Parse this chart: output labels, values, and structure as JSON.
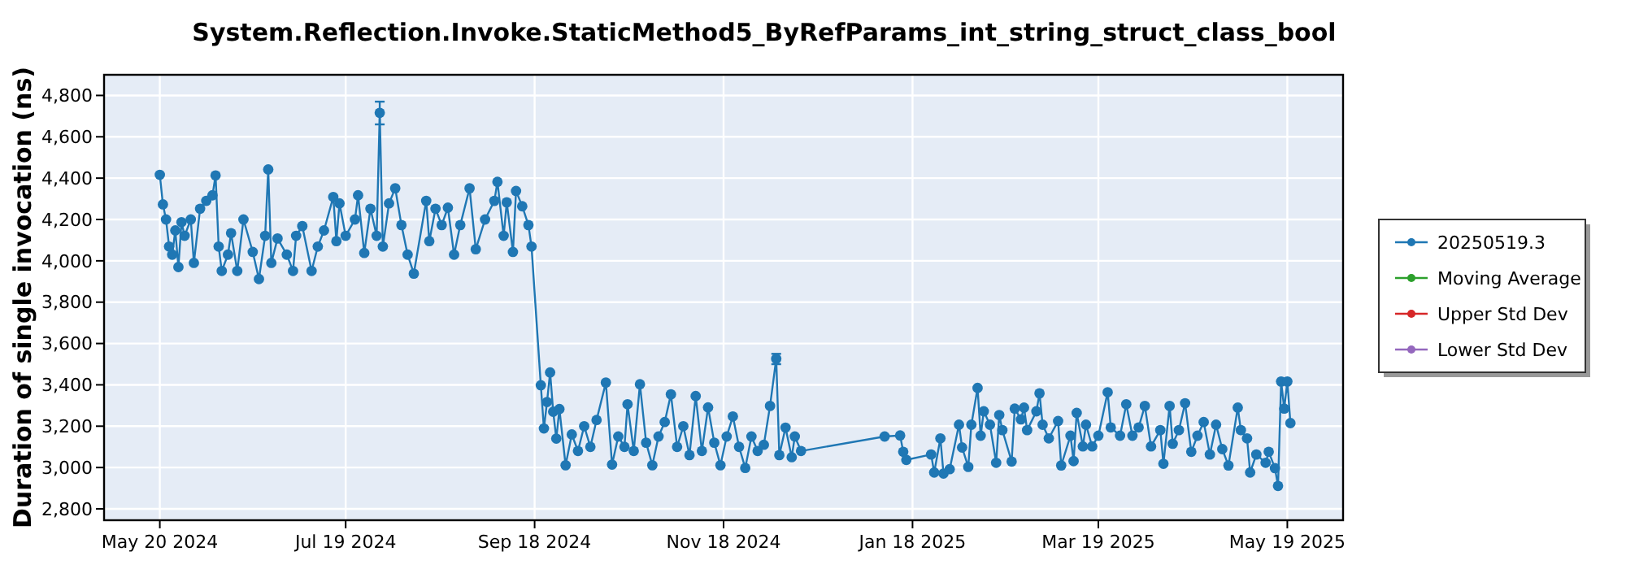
{
  "chart_data": {
    "type": "line",
    "title": "System.Reflection.Invoke.StaticMethod5_ByRefParams_int_string_struct_class_bool",
    "ylabel": "Duration of single invocation (ns)",
    "xlim": [
      "2024-05-02",
      "2025-06-06"
    ],
    "ylim": [
      2745,
      4900
    ],
    "xticks": [
      {
        "value": "2024-05-20",
        "label": "May 20 2024"
      },
      {
        "value": "2024-07-19",
        "label": "Jul 19 2024"
      },
      {
        "value": "2024-09-18",
        "label": "Sep 18 2024"
      },
      {
        "value": "2024-11-18",
        "label": "Nov 18 2024"
      },
      {
        "value": "2025-01-18",
        "label": "Jan 18 2025"
      },
      {
        "value": "2025-03-19",
        "label": "Mar 19 2025"
      },
      {
        "value": "2025-05-19",
        "label": "May 19 2025"
      }
    ],
    "yticks": [
      {
        "value": 2800,
        "label": "2,800"
      },
      {
        "value": 3000,
        "label": "3,000"
      },
      {
        "value": 3200,
        "label": "3,200"
      },
      {
        "value": 3400,
        "label": "3,400"
      },
      {
        "value": 3600,
        "label": "3,600"
      },
      {
        "value": 3800,
        "label": "3,800"
      },
      {
        "value": 4000,
        "label": "4,000"
      },
      {
        "value": 4200,
        "label": "4,200"
      },
      {
        "value": 4400,
        "label": "4,400"
      },
      {
        "value": 4600,
        "label": "4,600"
      },
      {
        "value": 4800,
        "label": "4,800"
      }
    ],
    "grid": true,
    "legend": "right",
    "marker": "circle",
    "line_style": "solid",
    "series": [
      {
        "name": "20250519.3",
        "color": "#1f77b4",
        "x": [
          "2024-05-20",
          "2024-05-21",
          "2024-05-22",
          "2024-05-23",
          "2024-05-24",
          "2024-05-25",
          "2024-05-26",
          "2024-05-27",
          "2024-05-28",
          "2024-05-30",
          "2024-05-31",
          "2024-06-02",
          "2024-06-04",
          "2024-06-06",
          "2024-06-07",
          "2024-06-08",
          "2024-06-09",
          "2024-06-11",
          "2024-06-12",
          "2024-06-14",
          "2024-06-16",
          "2024-06-19",
          "2024-06-21",
          "2024-06-23",
          "2024-06-24",
          "2024-06-25",
          "2024-06-27",
          "2024-06-30",
          "2024-07-02",
          "2024-07-03",
          "2024-07-05",
          "2024-07-08",
          "2024-07-10",
          "2024-07-12",
          "2024-07-15",
          "2024-07-16",
          "2024-07-17",
          "2024-07-19",
          "2024-07-22",
          "2024-07-23",
          "2024-07-25",
          "2024-07-27",
          "2024-07-29",
          "2024-07-30",
          "2024-07-31",
          "2024-08-02",
          "2024-08-04",
          "2024-08-06",
          "2024-08-08",
          "2024-08-10",
          "2024-08-14",
          "2024-08-15",
          "2024-08-17",
          "2024-08-19",
          "2024-08-21",
          "2024-08-23",
          "2024-08-25",
          "2024-08-28",
          "2024-08-30",
          "2024-09-02",
          "2024-09-05",
          "2024-09-06",
          "2024-09-08",
          "2024-09-09",
          "2024-09-11",
          "2024-09-12",
          "2024-09-14",
          "2024-09-16",
          "2024-09-17",
          "2024-09-20",
          "2024-09-21",
          "2024-09-22",
          "2024-09-23",
          "2024-09-24",
          "2024-09-25",
          "2024-09-26",
          "2024-09-28",
          "2024-09-30",
          "2024-10-02",
          "2024-10-04",
          "2024-10-06",
          "2024-10-08",
          "2024-10-11",
          "2024-10-13",
          "2024-10-15",
          "2024-10-17",
          "2024-10-18",
          "2024-10-20",
          "2024-10-22",
          "2024-10-24",
          "2024-10-26",
          "2024-10-28",
          "2024-10-30",
          "2024-11-01",
          "2024-11-03",
          "2024-11-05",
          "2024-11-07",
          "2024-11-09",
          "2024-11-11",
          "2024-11-13",
          "2024-11-15",
          "2024-11-17",
          "2024-11-19",
          "2024-11-21",
          "2024-11-23",
          "2024-11-25",
          "2024-11-27",
          "2024-11-29",
          "2024-12-01",
          "2024-12-03",
          "2024-12-05",
          "2024-12-06",
          "2024-12-08",
          "2024-12-10",
          "2024-12-11",
          "2024-12-13",
          "2025-01-09",
          "2025-01-14",
          "2025-01-15",
          "2025-01-16",
          "2025-01-24",
          "2025-01-25",
          "2025-01-27",
          "2025-01-28",
          "2025-01-30",
          "2025-02-02",
          "2025-02-03",
          "2025-02-05",
          "2025-02-06",
          "2025-02-08",
          "2025-02-09",
          "2025-02-10",
          "2025-02-12",
          "2025-02-14",
          "2025-02-15",
          "2025-02-16",
          "2025-02-19",
          "2025-02-20",
          "2025-02-22",
          "2025-02-23",
          "2025-02-24",
          "2025-02-27",
          "2025-02-28",
          "2025-03-01",
          "2025-03-03",
          "2025-03-06",
          "2025-03-07",
          "2025-03-10",
          "2025-03-11",
          "2025-03-12",
          "2025-03-14",
          "2025-03-15",
          "2025-03-17",
          "2025-03-19",
          "2025-03-22",
          "2025-03-23",
          "2025-03-26",
          "2025-03-28",
          "2025-03-30",
          "2025-04-01",
          "2025-04-03",
          "2025-04-05",
          "2025-04-08",
          "2025-04-09",
          "2025-04-11",
          "2025-04-12",
          "2025-04-14",
          "2025-04-16",
          "2025-04-18",
          "2025-04-20",
          "2025-04-22",
          "2025-04-24",
          "2025-04-26",
          "2025-04-28",
          "2025-04-30",
          "2025-05-03",
          "2025-05-04",
          "2025-05-06",
          "2025-05-07",
          "2025-05-09",
          "2025-05-12",
          "2025-05-13",
          "2025-05-15",
          "2025-05-16",
          "2025-05-17",
          "2025-05-18",
          "2025-05-19",
          "2025-05-20"
        ],
        "values": [
          4416,
          4273,
          4200,
          4069,
          4030,
          4147,
          3970,
          4187,
          4121,
          4200,
          3990,
          4252,
          4290,
          4317,
          4413,
          4069,
          3951,
          4030,
          4134,
          3951,
          4200,
          4043,
          3912,
          4121,
          4442,
          3990,
          4108,
          4030,
          3951,
          4121,
          4168,
          3951,
          4069,
          4147,
          4309,
          4095,
          4278,
          4121,
          4200,
          4317,
          4038,
          4252,
          4121,
          4716,
          4069,
          4278,
          4351,
          4173,
          4030,
          3938,
          4290,
          4095,
          4252,
          4173,
          4257,
          4030,
          4173,
          4351,
          4056,
          4200,
          4290,
          4382,
          4121,
          4283,
          4043,
          4338,
          4264,
          4173,
          4069,
          3398,
          3189,
          3317,
          3460,
          3270,
          3140,
          3283,
          3011,
          3160,
          3080,
          3200,
          3100,
          3230,
          3411,
          3014,
          3150,
          3100,
          3306,
          3080,
          3403,
          3120,
          3011,
          3150,
          3220,
          3354,
          3100,
          3200,
          3060,
          3346,
          3080,
          3291,
          3120,
          3011,
          3150,
          3247,
          3100,
          2998,
          3150,
          3080,
          3110,
          3298,
          3526,
          3060,
          3193,
          3050,
          3150,
          3080,
          3150,
          3155,
          3076,
          3037,
          3063,
          2976,
          3141,
          2971,
          2992,
          3207,
          3097,
          3003,
          3207,
          3385,
          3154,
          3272,
          3207,
          3023,
          3254,
          3181,
          3029,
          3285,
          3233,
          3290,
          3181,
          3272,
          3359,
          3207,
          3141,
          3225,
          3010,
          3154,
          3031,
          3264,
          3102,
          3207,
          3102,
          3154,
          3364,
          3194,
          3154,
          3306,
          3154,
          3194,
          3298,
          3102,
          3181,
          3018,
          3298,
          3115,
          3181,
          3311,
          3076,
          3154,
          3220,
          3063,
          3207,
          3089,
          3010,
          3290,
          3181,
          3141,
          2976,
          3063,
          3023,
          3076,
          2997,
          2911,
          3416,
          3285,
          3416,
          3215
        ],
        "errors": [
          null,
          null,
          null,
          null,
          null,
          null,
          null,
          null,
          null,
          null,
          null,
          null,
          null,
          null,
          null,
          null,
          null,
          null,
          null,
          null,
          null,
          null,
          null,
          null,
          null,
          null,
          null,
          null,
          null,
          null,
          null,
          null,
          null,
          null,
          null,
          null,
          null,
          null,
          null,
          null,
          null,
          null,
          null,
          [
            4660,
            4770
          ],
          null,
          null,
          null,
          null,
          null,
          null,
          null,
          null,
          null,
          null,
          null,
          null,
          null,
          null,
          null,
          null,
          null,
          null,
          null,
          null,
          null,
          null,
          null,
          null,
          null,
          null,
          null,
          null,
          null,
          null,
          null,
          null,
          null,
          null,
          null,
          null,
          null,
          null,
          null,
          null,
          null,
          null,
          null,
          null,
          null,
          null,
          null,
          null,
          null,
          null,
          null,
          null,
          null,
          null,
          null,
          null,
          null,
          null,
          null,
          null,
          null,
          null,
          null,
          null,
          null,
          null,
          [
            3500,
            3550
          ],
          null,
          null,
          null,
          null,
          null,
          null,
          null,
          null,
          null,
          null,
          null,
          null,
          null,
          null,
          null,
          null,
          null,
          null,
          null,
          null,
          null,
          null,
          null,
          null,
          null,
          null,
          null,
          null,
          null,
          null,
          null,
          null,
          null,
          null,
          null,
          null,
          null,
          null,
          null,
          null,
          null,
          null,
          null,
          null,
          null,
          null,
          null,
          null,
          null,
          null,
          null,
          null,
          null,
          null,
          null,
          null,
          null,
          null,
          null,
          null,
          null,
          null,
          null,
          null,
          null,
          null,
          null,
          null,
          null,
          null,
          null,
          null,
          null,
          null,
          null,
          null,
          null
        ]
      },
      {
        "name": "Moving Average",
        "color": "#2ca02c"
      },
      {
        "name": "Upper Std Dev",
        "color": "#d62728"
      },
      {
        "name": "Lower Std Dev",
        "color": "#9467bd"
      }
    ]
  }
}
